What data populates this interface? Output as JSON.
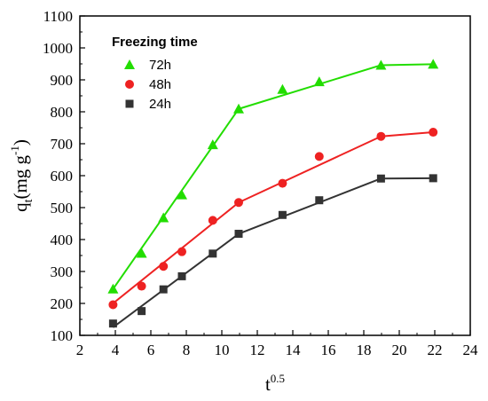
{
  "chart_data": {
    "type": "scatter",
    "xlabel": {
      "base": "t",
      "sup": "0.5"
    },
    "ylabel": {
      "pre": "q",
      "sub": "t",
      "mid": "(mg g",
      "sup": "-1",
      "post": ")"
    },
    "xlim": [
      2,
      24
    ],
    "ylim": [
      100,
      1100
    ],
    "xticks": [
      2,
      4,
      6,
      8,
      10,
      12,
      14,
      16,
      18,
      20,
      22,
      24
    ],
    "yticks": [
      100,
      200,
      300,
      400,
      500,
      600,
      700,
      800,
      900,
      1000,
      1100
    ],
    "grid": false,
    "legend": {
      "title": "Freezing time",
      "position": "top-left"
    },
    "series": [
      {
        "name": "72h",
        "marker": "triangle",
        "color": "#22dd00",
        "x": [
          3.87,
          5.48,
          6.71,
          7.75,
          9.49,
          10.95,
          13.42,
          15.49,
          18.97,
          21.91
        ],
        "y": [
          245,
          357,
          468,
          540,
          697,
          809,
          870,
          894,
          946,
          949
        ],
        "fit_segments": [
          [
            [
              3.87,
              245
            ],
            [
              10.95,
              809
            ]
          ],
          [
            [
              10.95,
              809
            ],
            [
              18.97,
              946
            ]
          ],
          [
            [
              18.97,
              946
            ],
            [
              21.91,
              949
            ]
          ]
        ]
      },
      {
        "name": "48h",
        "marker": "circle",
        "color": "#ee2222",
        "x": [
          3.87,
          5.48,
          6.71,
          7.75,
          9.49,
          10.95,
          13.42,
          15.49,
          18.97,
          21.91
        ],
        "y": [
          196,
          254,
          316,
          362,
          460,
          516,
          576,
          660,
          723,
          736
        ],
        "fit_segments": [
          [
            [
              3.87,
              200
            ],
            [
              10.95,
              516
            ]
          ],
          [
            [
              10.95,
              516
            ],
            [
              18.97,
              723
            ]
          ],
          [
            [
              18.97,
              723
            ],
            [
              21.91,
              736
            ]
          ]
        ]
      },
      {
        "name": "24h",
        "marker": "square",
        "color": "#333333",
        "x": [
          3.87,
          5.48,
          6.71,
          7.75,
          9.49,
          10.95,
          13.42,
          15.49,
          18.97,
          21.91
        ],
        "y": [
          137,
          176,
          244,
          285,
          356,
          418,
          477,
          523,
          591,
          592
        ],
        "fit_segments": [
          [
            [
              3.87,
              125
            ],
            [
              10.95,
              418
            ]
          ],
          [
            [
              10.95,
              418
            ],
            [
              18.97,
              591
            ]
          ],
          [
            [
              18.97,
              591
            ],
            [
              21.91,
              592
            ]
          ]
        ]
      }
    ]
  }
}
